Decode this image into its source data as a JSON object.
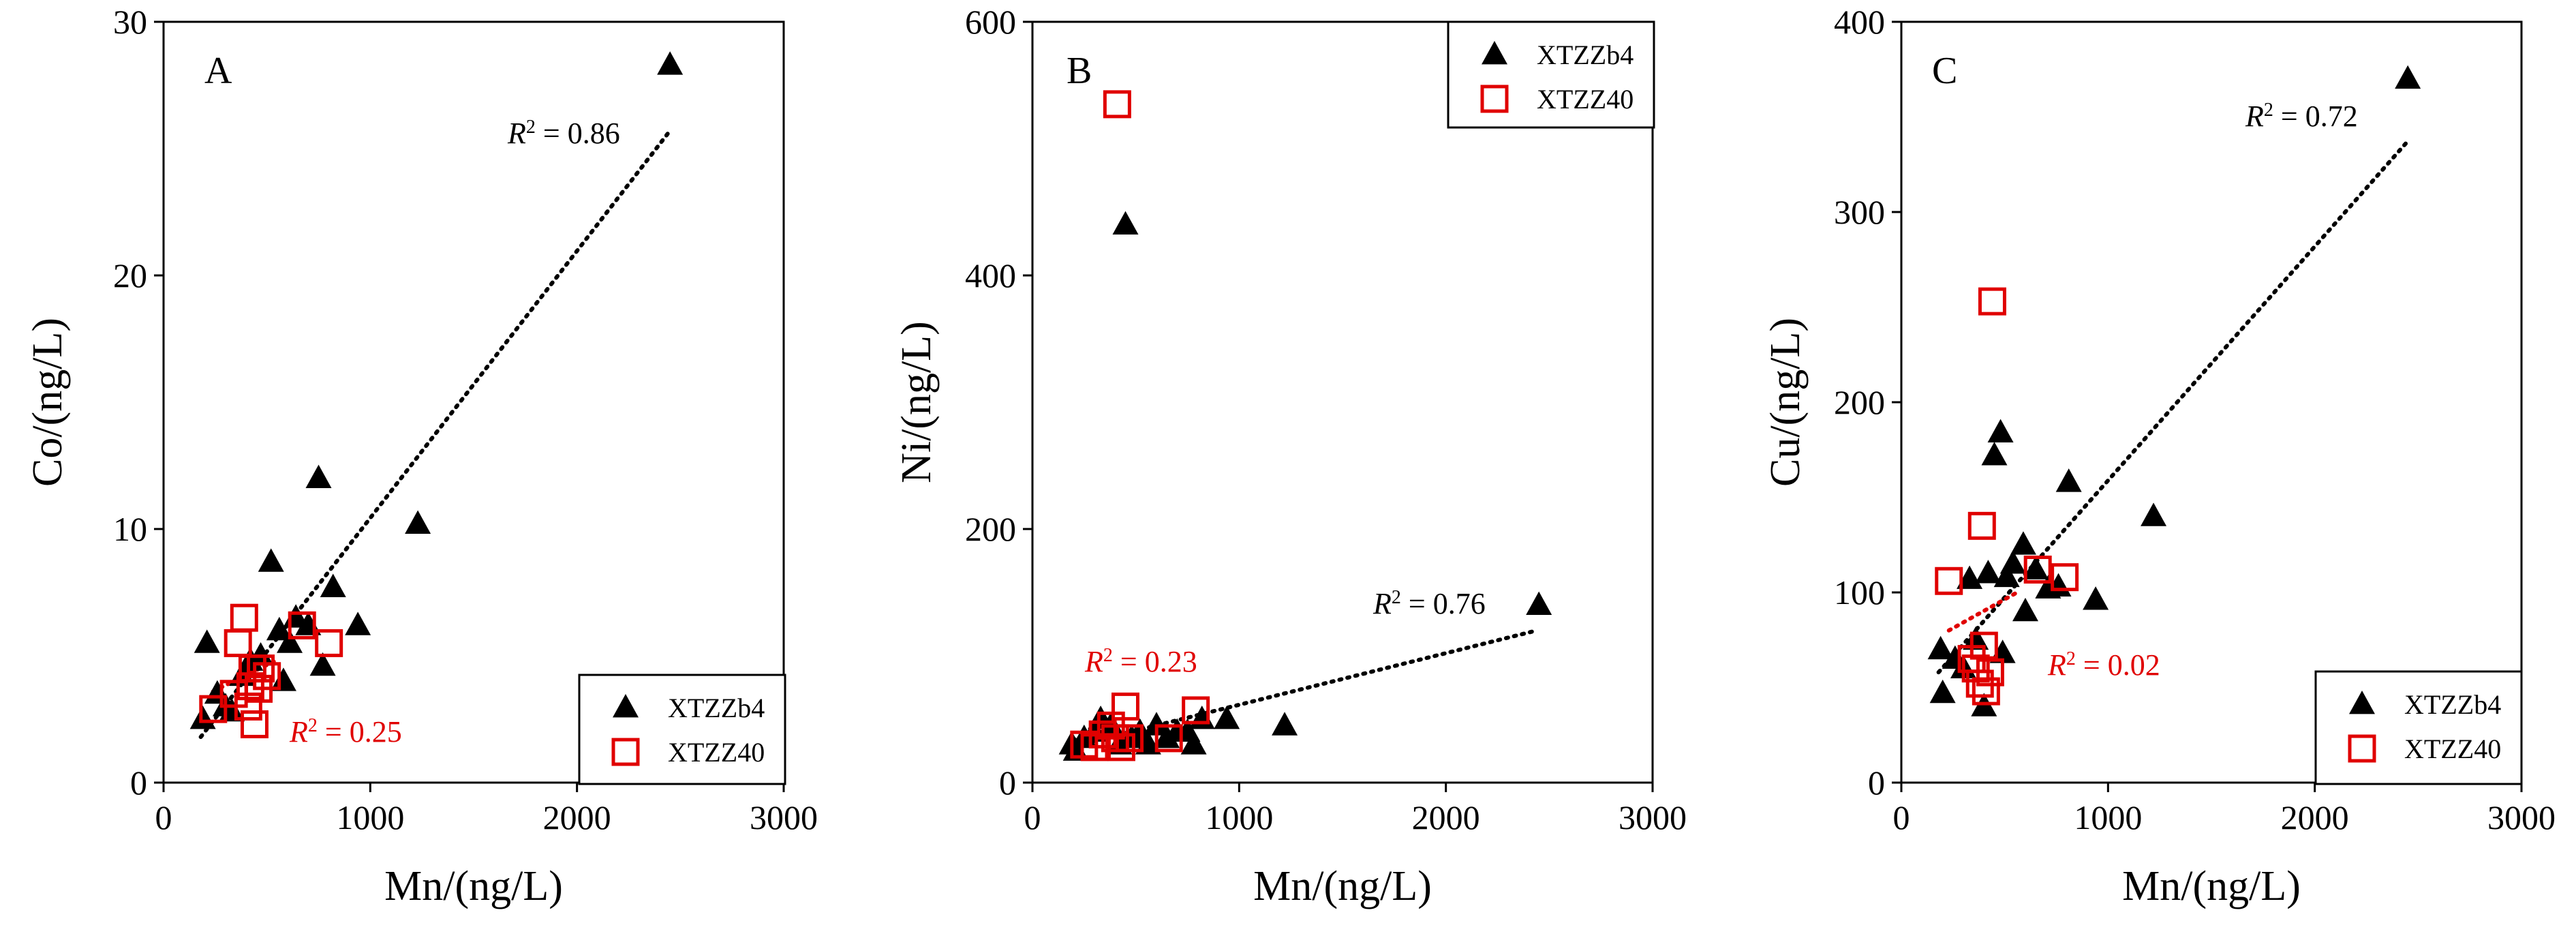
{
  "chart_data": [
    {
      "panel": "A",
      "type": "scatter",
      "xlabel": "Mn/(ng/L)",
      "ylabel": "Co/(ng/L)",
      "xlim": [
        0,
        3000
      ],
      "ylim": [
        0,
        30
      ],
      "xticks": [
        0,
        1000,
        2000,
        3000
      ],
      "yticks": [
        0,
        10,
        20,
        30
      ],
      "legend_position": "bottom-right",
      "series": [
        {
          "name": "XTZZb4",
          "marker": "filled-triangle",
          "color": "#000000",
          "points": [
            [
              190,
              2.5
            ],
            [
              210,
              5.5
            ],
            [
              260,
              3.5
            ],
            [
              300,
              3.0
            ],
            [
              330,
              2.8
            ],
            [
              380,
              4.2
            ],
            [
              420,
              4.8
            ],
            [
              470,
              5.0
            ],
            [
              520,
              8.7
            ],
            [
              560,
              6.0
            ],
            [
              580,
              4.0
            ],
            [
              610,
              5.5
            ],
            [
              640,
              6.5
            ],
            [
              700,
              6.2
            ],
            [
              750,
              12.0
            ],
            [
              770,
              4.6
            ],
            [
              820,
              7.7
            ],
            [
              940,
              6.2
            ],
            [
              1230,
              10.2
            ],
            [
              2450,
              28.3
            ]
          ],
          "trend": {
            "x": [
              180,
              2440
            ],
            "y": [
              1.8,
              25.6
            ],
            "style": "dotted",
            "r2_text": "= 0.86",
            "r2_color": "#000000"
          }
        },
        {
          "name": "XTZZ40",
          "marker": "open-square",
          "color": "#e00000",
          "points": [
            [
              240,
              2.9
            ],
            [
              340,
              3.5
            ],
            [
              360,
              5.5
            ],
            [
              390,
              6.5
            ],
            [
              410,
              3.0
            ],
            [
              420,
              3.8
            ],
            [
              430,
              4.5
            ],
            [
              440,
              2.3
            ],
            [
              460,
              3.7
            ],
            [
              470,
              4.5
            ],
            [
              500,
              4.2
            ],
            [
              670,
              6.2
            ],
            [
              800,
              5.5
            ]
          ],
          "trend": {
            "x": [
              240,
              540
            ],
            "y": [
              3.6,
              4.8
            ],
            "style": "dotted",
            "r2_text": "= 0.25",
            "r2_color": "#e00000"
          }
        }
      ]
    },
    {
      "panel": "B",
      "type": "scatter",
      "xlabel": "Mn/(ng/L)",
      "ylabel": "Ni/(ng/L)",
      "xlim": [
        0,
        3000
      ],
      "ylim": [
        0,
        600
      ],
      "xticks": [
        0,
        1000,
        2000,
        3000
      ],
      "yticks": [
        0,
        200,
        400,
        600
      ],
      "legend_position": "top-right",
      "series": [
        {
          "name": "XTZZb4",
          "marker": "filled-triangle",
          "color": "#000000",
          "points": [
            [
              190,
              30
            ],
            [
              210,
              25
            ],
            [
              250,
              35
            ],
            [
              300,
              40
            ],
            [
              330,
              50
            ],
            [
              380,
              45
            ],
            [
              420,
              30
            ],
            [
              450,
              440
            ],
            [
              480,
              35
            ],
            [
              520,
              40
            ],
            [
              560,
              30
            ],
            [
              600,
              45
            ],
            [
              650,
              35
            ],
            [
              700,
              40
            ],
            [
              750,
              40
            ],
            [
              780,
              30
            ],
            [
              820,
              50
            ],
            [
              940,
              50
            ],
            [
              1220,
              45
            ],
            [
              2450,
              140
            ]
          ],
          "trend": {
            "x": [
              180,
              2440
            ],
            "y": [
              28,
              120
            ],
            "style": "dotted",
            "r2_text": "= 0.76",
            "r2_color": "#000000"
          }
        },
        {
          "name": "XTZZ40",
          "marker": "open-square",
          "color": "#e00000",
          "points": [
            [
              250,
              30
            ],
            [
              300,
              28
            ],
            [
              340,
              38
            ],
            [
              380,
              45
            ],
            [
              400,
              35
            ],
            [
              410,
              535
            ],
            [
              430,
              28
            ],
            [
              450,
              60
            ],
            [
              470,
              35
            ],
            [
              660,
              35
            ],
            [
              790,
              57
            ]
          ],
          "trend": {
            "x": [
              250,
              520
            ],
            "y": [
              34,
              40
            ],
            "style": "dotted",
            "r2_text": "= 0.23",
            "r2_color": "#e00000"
          }
        }
      ]
    },
    {
      "panel": "C",
      "type": "scatter",
      "xlabel": "Mn/(ng/L)",
      "ylabel": "Cu/(ng/L)",
      "xlim": [
        0,
        3000
      ],
      "ylim": [
        0,
        400
      ],
      "xticks": [
        0,
        1000,
        2000,
        3000
      ],
      "yticks": [
        0,
        100,
        200,
        300,
        400
      ],
      "legend_position": "bottom-right",
      "series": [
        {
          "name": "XTZZb4",
          "marker": "filled-triangle",
          "color": "#000000",
          "points": [
            [
              190,
              70
            ],
            [
              200,
              47
            ],
            [
              260,
              65
            ],
            [
              300,
              60
            ],
            [
              330,
              107
            ],
            [
              360,
              75
            ],
            [
              400,
              40
            ],
            [
              420,
              110
            ],
            [
              450,
              172
            ],
            [
              480,
              184
            ],
            [
              490,
              68
            ],
            [
              510,
              108
            ],
            [
              540,
              115
            ],
            [
              590,
              125
            ],
            [
              600,
              90
            ],
            [
              650,
              112
            ],
            [
              710,
              102
            ],
            [
              760,
              103
            ],
            [
              810,
              158
            ],
            [
              940,
              96
            ],
            [
              1220,
              140
            ],
            [
              2450,
              370
            ]
          ],
          "trend": {
            "x": [
              180,
              2440
            ],
            "y": [
              58,
              336
            ],
            "style": "dotted",
            "r2_text": "= 0.72",
            "r2_color": "#000000"
          }
        },
        {
          "name": "XTZZ40",
          "marker": "open-square",
          "color": "#e00000",
          "points": [
            [
              230,
              106
            ],
            [
              340,
              65
            ],
            [
              360,
              60
            ],
            [
              380,
              52
            ],
            [
              390,
              135
            ],
            [
              400,
              72
            ],
            [
              410,
              48
            ],
            [
              430,
              58
            ],
            [
              440,
              253
            ],
            [
              660,
              112
            ],
            [
              790,
              108
            ]
          ],
          "trend": {
            "x": [
              230,
              560
            ],
            "y": [
              80,
              100
            ],
            "style": "dotted",
            "r2_text": "= 0.02",
            "r2_color": "#e00000"
          }
        }
      ]
    }
  ]
}
